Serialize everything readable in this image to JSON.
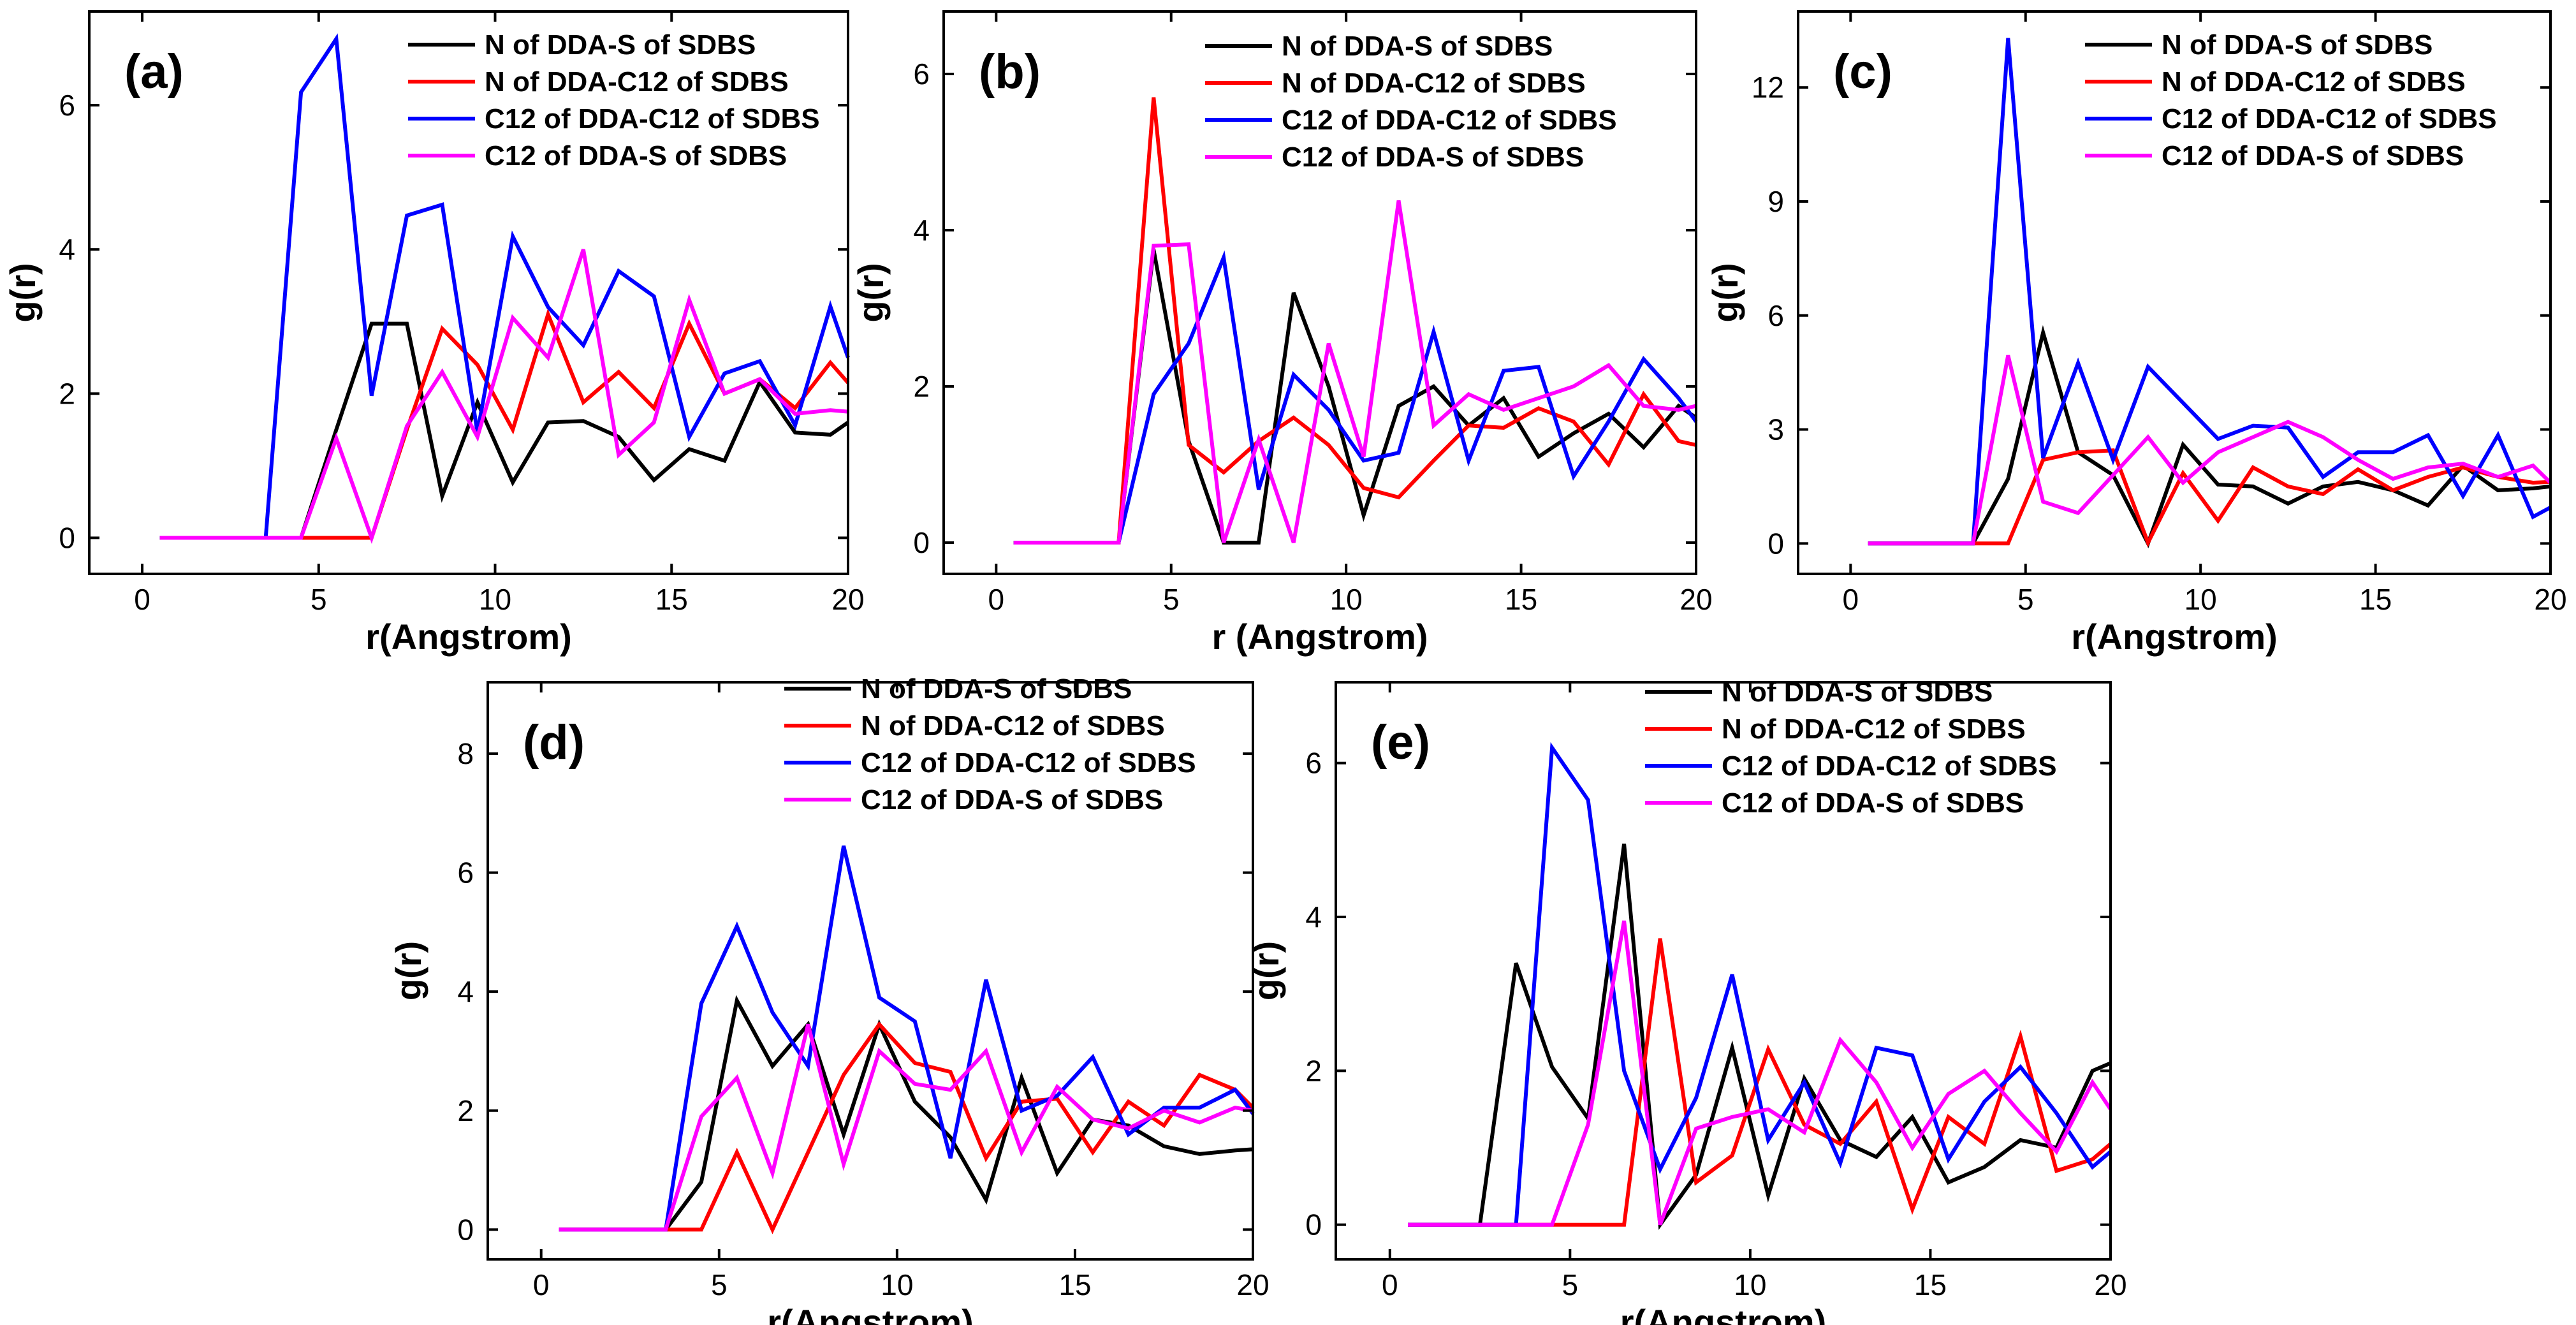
{
  "colors": {
    "N_DDA_S": "#000000",
    "N_DDA_C12": "#ff0000",
    "C12_DDA_C12": "#0000ff",
    "C12_DDA_S": "#ff00ff"
  },
  "chart_data": [
    {
      "type": "line",
      "panel": "(a)",
      "title": "",
      "xlabel": "r(Angstrom)",
      "ylabel": "g(r)",
      "xlim": [
        -1.5,
        20
      ],
      "ylim": [
        -0.5,
        7.3
      ],
      "xticks": [
        0,
        5,
        10,
        15,
        20
      ],
      "yticks": [
        0,
        2,
        4,
        6
      ],
      "legend_position": "top-right",
      "x": [
        0.5,
        1.5,
        2.5,
        3.5,
        4.5,
        5.5,
        6.5,
        7.5,
        8.5,
        9.5,
        10.5,
        11.5,
        12.5,
        13.5,
        14.5,
        15.5,
        16.5,
        17.5,
        18.5,
        19.5,
        20.0
      ],
      "series": [
        {
          "key": "N_DDA_S",
          "name": "N of DDA-S of SDBS",
          "values": [
            0,
            0,
            0,
            0,
            0,
            1.5,
            2.97,
            2.97,
            0.58,
            1.88,
            0.77,
            1.6,
            1.62,
            1.4,
            0.8,
            1.23,
            1.07,
            2.16,
            1.46,
            1.43,
            1.6
          ]
        },
        {
          "key": "N_DDA_C12",
          "name": "N of DDA-C12 of SDBS",
          "values": [
            0,
            0,
            0,
            0,
            0,
            0,
            0,
            1.5,
            2.9,
            2.4,
            1.5,
            3.1,
            1.88,
            2.3,
            1.8,
            2.97,
            2.0,
            2.2,
            1.8,
            2.43,
            2.15
          ]
        },
        {
          "key": "C12_DDA_C12",
          "name": "C12 of DDA-C12 of SDBS",
          "values": [
            0,
            0,
            0,
            0,
            6.18,
            6.92,
            1.97,
            4.47,
            4.62,
            1.46,
            4.18,
            3.2,
            2.67,
            3.7,
            3.35,
            1.4,
            2.28,
            2.45,
            1.56,
            3.21,
            2.5
          ]
        },
        {
          "key": "C12_DDA_S",
          "name": "C12 of DDA-S of SDBS",
          "values": [
            0,
            0,
            0,
            0,
            0,
            1.38,
            0,
            1.55,
            2.3,
            1.4,
            3.05,
            2.5,
            4.0,
            1.15,
            1.6,
            3.3,
            2.0,
            2.2,
            1.72,
            1.77,
            1.75
          ]
        }
      ]
    },
    {
      "type": "line",
      "panel": "(b)",
      "title": "",
      "xlabel": "r (Angstrom)",
      "ylabel": "g(r)",
      "xlim": [
        -1.5,
        20
      ],
      "ylim": [
        -0.4,
        6.8
      ],
      "xticks": [
        0,
        5,
        10,
        15,
        20
      ],
      "yticks": [
        0,
        2,
        4,
        6
      ],
      "legend_position": "top-right",
      "x": [
        0.5,
        1.5,
        2.5,
        3.5,
        4.5,
        5.5,
        6.5,
        7.5,
        8.5,
        9.5,
        10.5,
        11.5,
        12.5,
        13.5,
        14.5,
        15.5,
        16.5,
        17.5,
        18.5,
        19.5,
        20.0
      ],
      "series": [
        {
          "key": "N_DDA_S",
          "name": "N of DDA-S of SDBS",
          "values": [
            0,
            0,
            0,
            0,
            3.75,
            1.3,
            0,
            0,
            3.2,
            2.0,
            0.35,
            1.75,
            2.0,
            1.5,
            1.85,
            1.1,
            1.4,
            1.65,
            1.22,
            1.75,
            1.6
          ]
        },
        {
          "key": "N_DDA_C12",
          "name": "N of DDA-C12 of SDBS",
          "values": [
            0,
            0,
            0,
            0,
            5.7,
            1.25,
            0.9,
            1.3,
            1.6,
            1.25,
            0.7,
            0.58,
            1.05,
            1.5,
            1.47,
            1.72,
            1.55,
            1.0,
            1.9,
            1.3,
            1.25
          ]
        },
        {
          "key": "C12_DDA_C12",
          "name": "C12 of DDA-C12 of SDBS",
          "values": [
            0,
            0,
            0,
            0,
            1.9,
            2.55,
            3.65,
            0.68,
            2.15,
            1.7,
            1.05,
            1.15,
            2.7,
            1.05,
            2.2,
            2.25,
            0.85,
            1.55,
            2.35,
            1.85,
            1.55
          ]
        },
        {
          "key": "C12_DDA_S",
          "name": "C12 of DDA-S of SDBS",
          "values": [
            0,
            0,
            0,
            0,
            3.8,
            3.82,
            0,
            1.32,
            0,
            2.55,
            1.1,
            4.38,
            1.5,
            1.9,
            1.7,
            1.85,
            2.0,
            2.27,
            1.75,
            1.7,
            1.75
          ]
        }
      ]
    },
    {
      "type": "line",
      "panel": "(c)",
      "title": "",
      "xlabel": "r(Angstrom)",
      "ylabel": "g(r)",
      "xlim": [
        -1.5,
        20
      ],
      "ylim": [
        -0.8,
        14.0
      ],
      "xticks": [
        0,
        5,
        10,
        15,
        20
      ],
      "yticks": [
        0,
        3,
        6,
        9,
        12
      ],
      "legend_position": "top-right",
      "x": [
        0.5,
        1.5,
        2.5,
        3.5,
        4.5,
        5.5,
        6.5,
        7.5,
        8.5,
        9.5,
        10.5,
        11.5,
        12.5,
        13.5,
        14.5,
        15.5,
        16.5,
        17.5,
        18.5,
        19.5,
        20.0
      ],
      "series": [
        {
          "key": "N_DDA_S",
          "name": "N of DDA-S of SDBS",
          "values": [
            0,
            0,
            0,
            0,
            1.7,
            5.55,
            2.4,
            1.8,
            0,
            2.6,
            1.55,
            1.5,
            1.05,
            1.5,
            1.62,
            1.4,
            1.0,
            2.05,
            1.4,
            1.45,
            1.5
          ]
        },
        {
          "key": "N_DDA_C12",
          "name": "N of DDA-C12 of SDBS",
          "values": [
            0,
            0,
            0,
            0,
            0,
            2.2,
            2.4,
            2.45,
            0.02,
            1.85,
            0.6,
            2.0,
            1.5,
            1.3,
            1.95,
            1.4,
            1.75,
            2.0,
            1.75,
            1.6,
            1.62
          ]
        },
        {
          "key": "C12_DDA_C12",
          "name": "C12 of DDA-C12 of SDBS",
          "values": [
            0,
            0,
            0,
            0,
            13.3,
            2.25,
            4.75,
            2.2,
            4.65,
            3.7,
            2.75,
            3.1,
            3.05,
            1.75,
            2.4,
            2.4,
            2.85,
            1.25,
            2.85,
            0.7,
            0.95
          ]
        },
        {
          "key": "C12_DDA_S",
          "name": "C12 of DDA-S of SDBS",
          "values": [
            0,
            0,
            0,
            0,
            4.95,
            1.1,
            0.8,
            1.8,
            2.8,
            1.6,
            2.4,
            2.8,
            3.2,
            2.8,
            2.2,
            1.7,
            2.0,
            2.1,
            1.75,
            2.05,
            1.6
          ]
        }
      ]
    },
    {
      "type": "line",
      "panel": "(d)",
      "title": "",
      "xlabel": "r(Angstrom)",
      "ylabel": "g(r)",
      "xlim": [
        -1.5,
        20
      ],
      "ylim": [
        -0.5,
        9.2
      ],
      "xticks": [
        0,
        5,
        10,
        15,
        20
      ],
      "yticks": [
        0,
        2,
        4,
        6,
        8
      ],
      "legend_position": "top-right",
      "x": [
        0.5,
        1.5,
        2.5,
        3.5,
        4.5,
        5.5,
        6.5,
        7.5,
        8.5,
        9.5,
        10.5,
        11.5,
        12.5,
        13.5,
        14.5,
        15.5,
        16.5,
        17.5,
        18.5,
        19.5,
        20.0
      ],
      "series": [
        {
          "key": "N_DDA_S",
          "name": "N of DDA-S of SDBS",
          "values": [
            0,
            0,
            0,
            0,
            0.8,
            3.85,
            2.75,
            3.45,
            1.6,
            3.45,
            2.15,
            1.55,
            0.5,
            2.55,
            0.95,
            1.85,
            1.75,
            1.4,
            1.27,
            1.33,
            1.35
          ]
        },
        {
          "key": "N_DDA_C12",
          "name": "N of DDA-C12 of SDBS",
          "values": [
            0,
            0,
            0,
            0,
            0,
            1.3,
            0,
            1.3,
            2.6,
            3.45,
            2.8,
            2.65,
            1.2,
            2.15,
            2.2,
            1.3,
            2.15,
            1.75,
            2.6,
            2.35,
            2.05
          ]
        },
        {
          "key": "C12_DDA_C12",
          "name": "C12 of DDA-C12 of SDBS",
          "values": [
            0,
            0,
            0,
            0,
            3.8,
            5.1,
            3.65,
            2.75,
            6.45,
            3.9,
            3.5,
            1.2,
            4.2,
            2.0,
            2.25,
            2.9,
            1.6,
            2.05,
            2.05,
            2.35,
            1.95
          ]
        },
        {
          "key": "C12_DDA_S",
          "name": "C12 of DDA-S of SDBS",
          "values": [
            0,
            0,
            0,
            0,
            1.9,
            2.55,
            0.95,
            3.45,
            1.1,
            3.0,
            2.45,
            2.35,
            3.0,
            1.3,
            2.4,
            1.85,
            1.7,
            2.0,
            1.8,
            2.05,
            2.0
          ]
        }
      ]
    },
    {
      "type": "line",
      "panel": "(e)",
      "title": "",
      "xlabel": "r(Angstrom)",
      "ylabel": "g(r)",
      "xlim": [
        -1.5,
        20
      ],
      "ylim": [
        -0.45,
        7.05
      ],
      "xticks": [
        0,
        5,
        10,
        15,
        20
      ],
      "yticks": [
        0,
        2,
        4,
        6
      ],
      "legend_position": "top-right",
      "x": [
        0.5,
        1.5,
        2.5,
        3.5,
        4.5,
        5.5,
        6.5,
        7.5,
        8.5,
        9.5,
        10.5,
        11.5,
        12.5,
        13.5,
        14.5,
        15.5,
        16.5,
        17.5,
        18.5,
        19.5,
        20.0
      ],
      "series": [
        {
          "key": "N_DDA_S",
          "name": "N of DDA-S of SDBS",
          "values": [
            0,
            0,
            0,
            3.4,
            2.05,
            1.38,
            4.95,
            0,
            0.65,
            2.3,
            0.38,
            1.9,
            1.1,
            0.88,
            1.4,
            0.55,
            0.75,
            1.1,
            1.0,
            2.0,
            2.1
          ]
        },
        {
          "key": "N_DDA_C12",
          "name": "N of DDA-C12 of SDBS",
          "values": [
            0,
            0,
            0,
            0,
            0,
            0,
            0,
            3.72,
            0.55,
            0.9,
            2.28,
            1.3,
            1.05,
            1.6,
            0.2,
            1.4,
            1.05,
            2.45,
            0.7,
            0.85,
            1.05
          ]
        },
        {
          "key": "C12_DDA_C12",
          "name": "C12 of DDA-C12 of SDBS",
          "values": [
            0,
            0,
            0,
            0,
            6.2,
            5.52,
            2.0,
            0.72,
            1.65,
            3.25,
            1.1,
            1.85,
            0.8,
            2.3,
            2.2,
            0.85,
            1.6,
            2.05,
            1.45,
            0.75,
            0.95
          ]
        },
        {
          "key": "C12_DDA_S",
          "name": "C12 of DDA-S of SDBS",
          "values": [
            0,
            0,
            0,
            0,
            0,
            1.3,
            3.95,
            0,
            1.25,
            1.4,
            1.5,
            1.2,
            2.4,
            1.85,
            1.0,
            1.7,
            2.0,
            1.45,
            0.95,
            1.85,
            1.5
          ]
        }
      ]
    }
  ]
}
